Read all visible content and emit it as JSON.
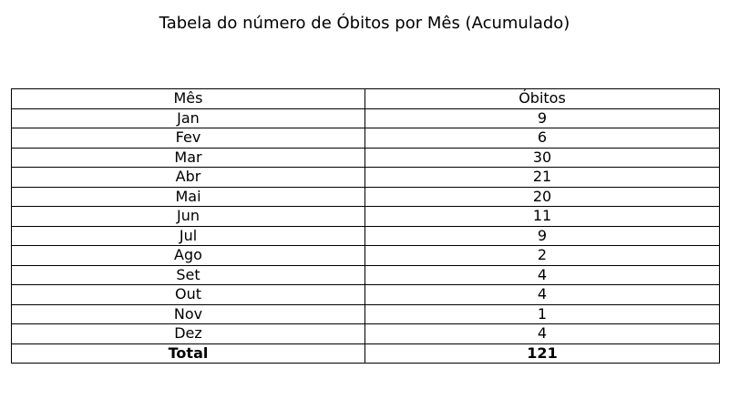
{
  "chart_data": {
    "type": "table",
    "title": "Tabela do número de Óbitos por Mês (Acumulado)",
    "columns": [
      "Mês",
      "Óbitos"
    ],
    "rows": [
      [
        "Jan",
        "9"
      ],
      [
        "Fev",
        "6"
      ],
      [
        "Mar",
        "30"
      ],
      [
        "Abr",
        "21"
      ],
      [
        "Mai",
        "20"
      ],
      [
        "Jun",
        "11"
      ],
      [
        "Jul",
        "9"
      ],
      [
        "Ago",
        "2"
      ],
      [
        "Set",
        "4"
      ],
      [
        "Out",
        "4"
      ],
      [
        "Nov",
        "1"
      ],
      [
        "Dez",
        "4"
      ]
    ],
    "total": {
      "label": "Total",
      "value": "121"
    }
  }
}
